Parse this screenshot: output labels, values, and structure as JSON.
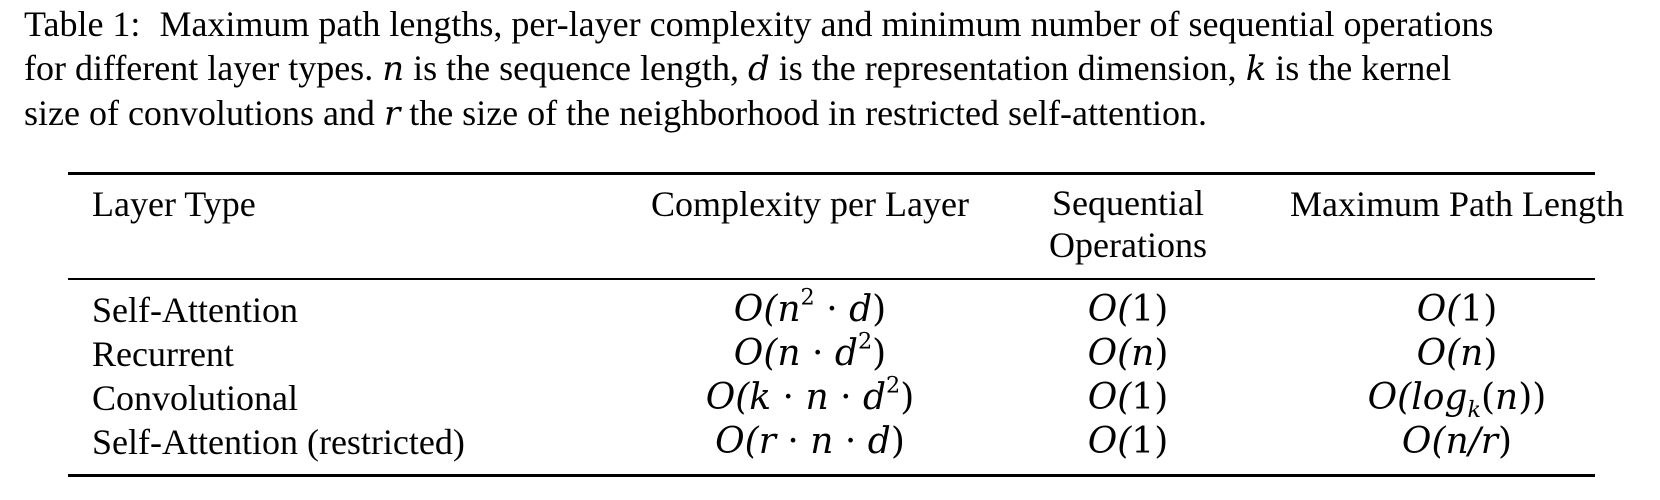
{
  "caption": {
    "label": "Table 1:",
    "line1_text": "Maximum path lengths, per-layer complexity and minimum number of sequential operations",
    "line2_a": "for different layer types.",
    "var_n": "n",
    "line2_b": "is the sequence length,",
    "var_d": "d",
    "line2_c": "is the representation dimension,",
    "var_k": "k",
    "line2_d": "is the kernel",
    "line3_a": "size of convolutions and",
    "var_r": "r",
    "line3_b": "the size of the neighborhood in restricted self-attention."
  },
  "table": {
    "headers": {
      "layer_type": "Layer Type",
      "complexity": "Complexity per Layer",
      "sequential_l1": "Sequential",
      "sequential_l2": "Operations",
      "max_path": "Maximum Path Length"
    },
    "rows": [
      {
        "layer_type": "Self-Attention",
        "complexity": {
          "a": "O(",
          "b": "n",
          "sup": "2",
          "c": " · ",
          "d": "d",
          "e": ")"
        },
        "sequential": {
          "a": "O(",
          "b": "1",
          "c": ")"
        },
        "max_path": {
          "a": "O(",
          "b": "1",
          "c": ")"
        }
      },
      {
        "layer_type": "Recurrent",
        "complexity": {
          "a": "O(",
          "b": "n",
          "c": " · ",
          "d": "d",
          "sup": "2",
          "e": ")"
        },
        "sequential": {
          "a": "O(",
          "b": "n",
          "c": ")"
        },
        "max_path": {
          "a": "O(",
          "b": "n",
          "c": ")"
        }
      },
      {
        "layer_type": "Convolutional",
        "complexity": {
          "a": "O(",
          "b": "k",
          "c": " · ",
          "d": "n",
          "e": " · ",
          "f": "d",
          "sup": "2",
          "g": ")"
        },
        "sequential": {
          "a": "O(",
          "b": "1",
          "c": ")"
        },
        "max_path": {
          "a": "O(",
          "b": "log",
          "sub": "k",
          "c": "(",
          "d": "n",
          "e": "))"
        }
      },
      {
        "layer_type": "Self-Attention (restricted)",
        "complexity": {
          "a": "O(",
          "b": "r",
          "c": " · ",
          "d": "n",
          "e": " · ",
          "f": "d",
          "g": ")"
        },
        "sequential": {
          "a": "O(",
          "b": "1",
          "c": ")"
        },
        "max_path": {
          "a": "O(",
          "b": "n/r",
          "c": ")"
        }
      }
    ]
  }
}
